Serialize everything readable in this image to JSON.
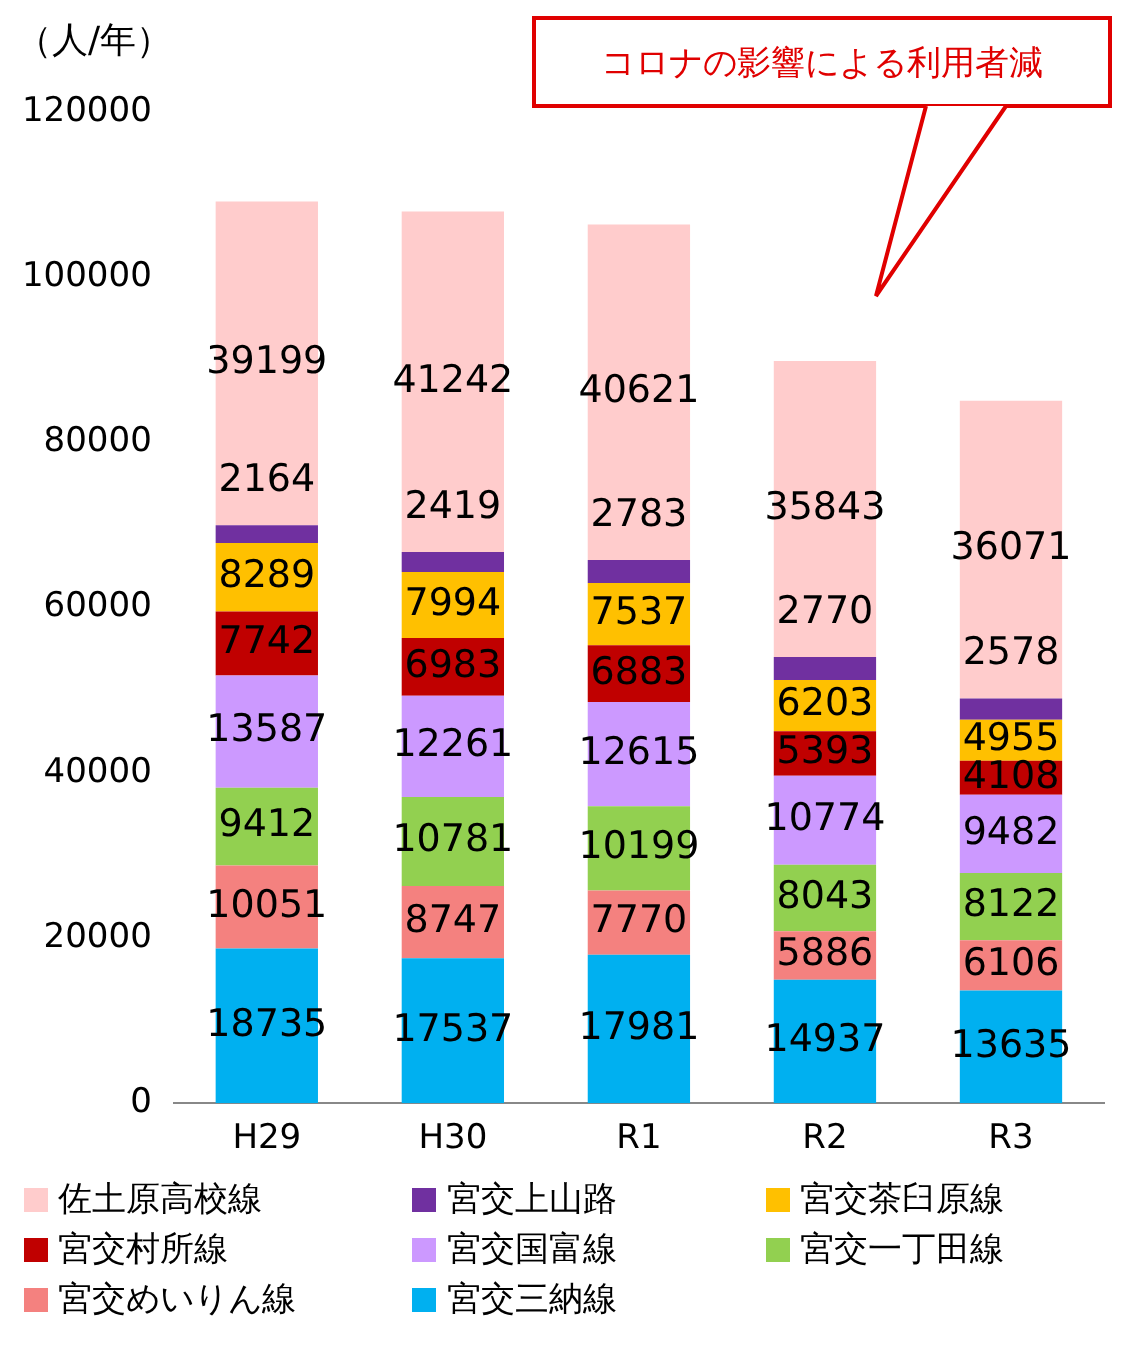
{
  "chart_data": {
    "type": "bar",
    "stacked": true,
    "ylabel": "（人/年）",
    "annotations": [
      "コロナの影響による利用者減"
    ],
    "categories": [
      "H29",
      "H30",
      "R1",
      "R2",
      "R3"
    ],
    "series": [
      {
        "name": "宮交三納線",
        "color": "#00b0f0",
        "values": [
          18735,
          17537,
          17981,
          14937,
          13635
        ]
      },
      {
        "name": "宮交めいりん線",
        "color": "#f4817f",
        "values": [
          10051,
          8747,
          7770,
          5886,
          6106
        ]
      },
      {
        "name": "宮交一丁田線",
        "color": "#92d050",
        "values": [
          9412,
          10781,
          10199,
          8043,
          8122
        ]
      },
      {
        "name": "宮交国富線",
        "color": "#cc99ff",
        "values": [
          13587,
          12261,
          12615,
          10774,
          9482
        ]
      },
      {
        "name": "宮交村所線",
        "color": "#c00000",
        "values": [
          7742,
          6983,
          6883,
          5393,
          4108
        ]
      },
      {
        "name": "宮交茶臼原線",
        "color": "#ffc000",
        "values": [
          8289,
          7994,
          7537,
          6203,
          4955
        ]
      },
      {
        "name": "宮交上山路",
        "color": "#7030a0",
        "values": [
          2164,
          2419,
          2783,
          2770,
          2578
        ]
      },
      {
        "name": "佐土原高校線",
        "color": "#ffcccc",
        "values": [
          39199,
          41242,
          40621,
          35843,
          36071
        ]
      }
    ],
    "ylim": [
      0,
      120000
    ],
    "yticks": [
      0,
      20000,
      40000,
      60000,
      80000,
      100000,
      120000
    ],
    "grid": false,
    "legend": "bottom",
    "data_labels": true
  }
}
